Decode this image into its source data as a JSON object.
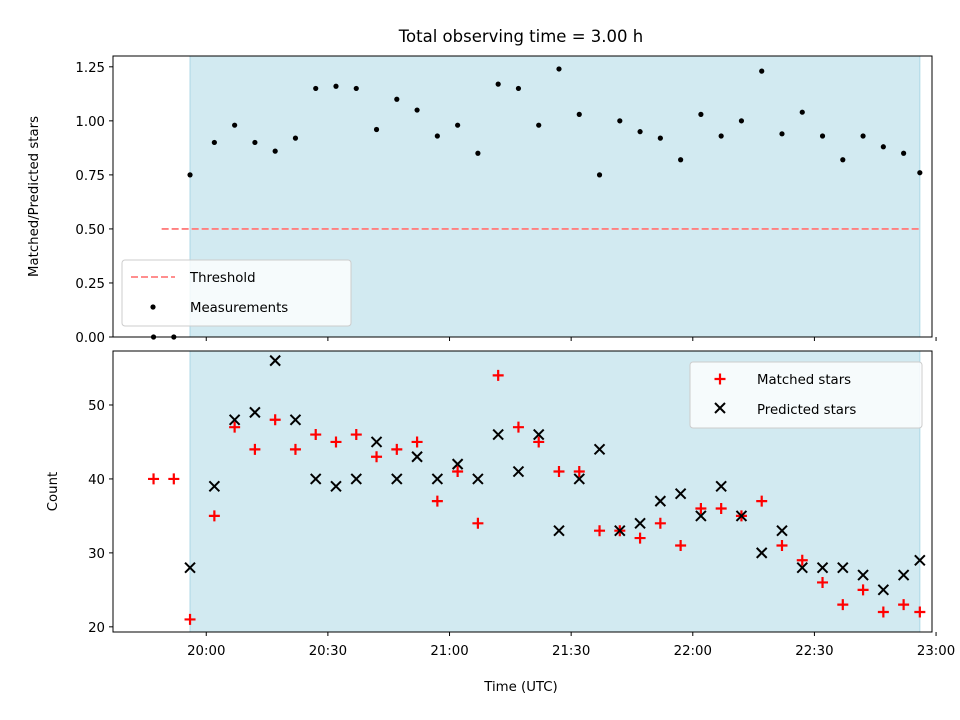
{
  "title": "Total observing time = 3.00 h",
  "xlabel": "Time (UTC)",
  "x_ticks": [
    "20:00",
    "20:30",
    "21:00",
    "21:30",
    "22:00",
    "22:30",
    "23:00"
  ],
  "colors": {
    "shade": "#add8e6",
    "threshold": "#ff7f7f",
    "matched": "#ff0000",
    "predicted": "#000000",
    "measurement": "#000000"
  },
  "chart_data": [
    {
      "type": "scatter",
      "panel": "top",
      "ylabel": "Matched/Predicted stars",
      "xlim": [
        "19:37",
        "22:59"
      ],
      "ylim": [
        0,
        1.3
      ],
      "y_ticks": [
        "0.00",
        "0.25",
        "0.50",
        "0.75",
        "1.00",
        "1.25"
      ],
      "observing_window": [
        "19:56",
        "22:56"
      ],
      "threshold": {
        "name": "Threshold",
        "value": 0.5,
        "x_range": [
          "19:49",
          "22:56"
        ]
      },
      "legend": {
        "placement": "lower left",
        "entries": [
          "Threshold",
          "Measurements"
        ]
      },
      "series": [
        {
          "name": "Measurements",
          "x": [
            "19:47",
            "19:52",
            "19:56",
            "20:02",
            "20:07",
            "20:12",
            "20:17",
            "20:22",
            "20:27",
            "20:32",
            "20:37",
            "20:42",
            "20:47",
            "20:52",
            "20:57",
            "21:02",
            "21:07",
            "21:12",
            "21:17",
            "21:22",
            "21:27",
            "21:32",
            "21:37",
            "21:42",
            "21:47",
            "21:52",
            "21:57",
            "22:02",
            "22:07",
            "22:12",
            "22:17",
            "22:22",
            "22:27",
            "22:32",
            "22:37",
            "22:42",
            "22:47",
            "22:52",
            "22:56"
          ],
          "y": [
            0.0,
            0.0,
            0.75,
            0.9,
            0.98,
            0.9,
            0.86,
            0.92,
            1.15,
            1.16,
            1.15,
            0.96,
            1.1,
            1.05,
            0.93,
            0.98,
            0.85,
            1.17,
            1.15,
            0.98,
            1.24,
            1.03,
            0.75,
            1.0,
            0.95,
            0.92,
            0.82,
            1.03,
            0.93,
            1.0,
            1.23,
            0.94,
            1.04,
            0.93,
            0.82,
            0.93,
            0.88,
            0.85,
            0.76
          ]
        }
      ]
    },
    {
      "type": "scatter",
      "panel": "bottom",
      "ylabel": "Count",
      "xlim": [
        "19:37",
        "22:59"
      ],
      "ylim": [
        19.3,
        57.3
      ],
      "y_ticks": [
        "20",
        "30",
        "40",
        "50"
      ],
      "observing_window": [
        "19:56",
        "22:56"
      ],
      "legend": {
        "placement": "upper right",
        "entries": [
          "Matched stars",
          "Predicted stars"
        ]
      },
      "series": [
        {
          "name": "Matched stars",
          "marker": "plus",
          "x": [
            "19:47",
            "19:52",
            "19:56",
            "20:02",
            "20:07",
            "20:12",
            "20:17",
            "20:22",
            "20:27",
            "20:32",
            "20:37",
            "20:42",
            "20:47",
            "20:52",
            "20:57",
            "21:02",
            "21:07",
            "21:12",
            "21:17",
            "21:22",
            "21:27",
            "21:32",
            "21:37",
            "21:42",
            "21:47",
            "21:52",
            "21:57",
            "22:02",
            "22:07",
            "22:12",
            "22:17",
            "22:22",
            "22:27",
            "22:32",
            "22:37",
            "22:42",
            "22:47",
            "22:52",
            "22:56"
          ],
          "y": [
            40,
            40,
            21,
            35,
            47,
            44,
            48,
            44,
            46,
            45,
            46,
            43,
            44,
            45,
            37,
            41,
            34,
            54,
            47,
            45,
            41,
            41,
            33,
            33,
            32,
            34,
            31,
            36,
            36,
            35,
            37,
            31,
            29,
            26,
            23,
            25,
            22,
            23,
            22
          ]
        },
        {
          "name": "Predicted stars",
          "marker": "x",
          "x": [
            "19:56",
            "20:02",
            "20:07",
            "20:12",
            "20:17",
            "20:22",
            "20:27",
            "20:32",
            "20:37",
            "20:42",
            "20:47",
            "20:52",
            "20:57",
            "21:02",
            "21:07",
            "21:12",
            "21:17",
            "21:22",
            "21:27",
            "21:32",
            "21:37",
            "21:42",
            "21:47",
            "21:52",
            "21:57",
            "22:02",
            "22:07",
            "22:12",
            "22:17",
            "22:22",
            "22:27",
            "22:32",
            "22:37",
            "22:42",
            "22:47",
            "22:52",
            "22:56"
          ],
          "y": [
            28,
            39,
            48,
            49,
            56,
            48,
            40,
            39,
            40,
            45,
            40,
            43,
            40,
            42,
            40,
            46,
            41,
            46,
            33,
            40,
            44,
            33,
            34,
            37,
            38,
            35,
            39,
            35,
            30,
            33,
            28,
            28,
            28,
            27,
            25,
            27,
            29
          ]
        }
      ]
    }
  ]
}
